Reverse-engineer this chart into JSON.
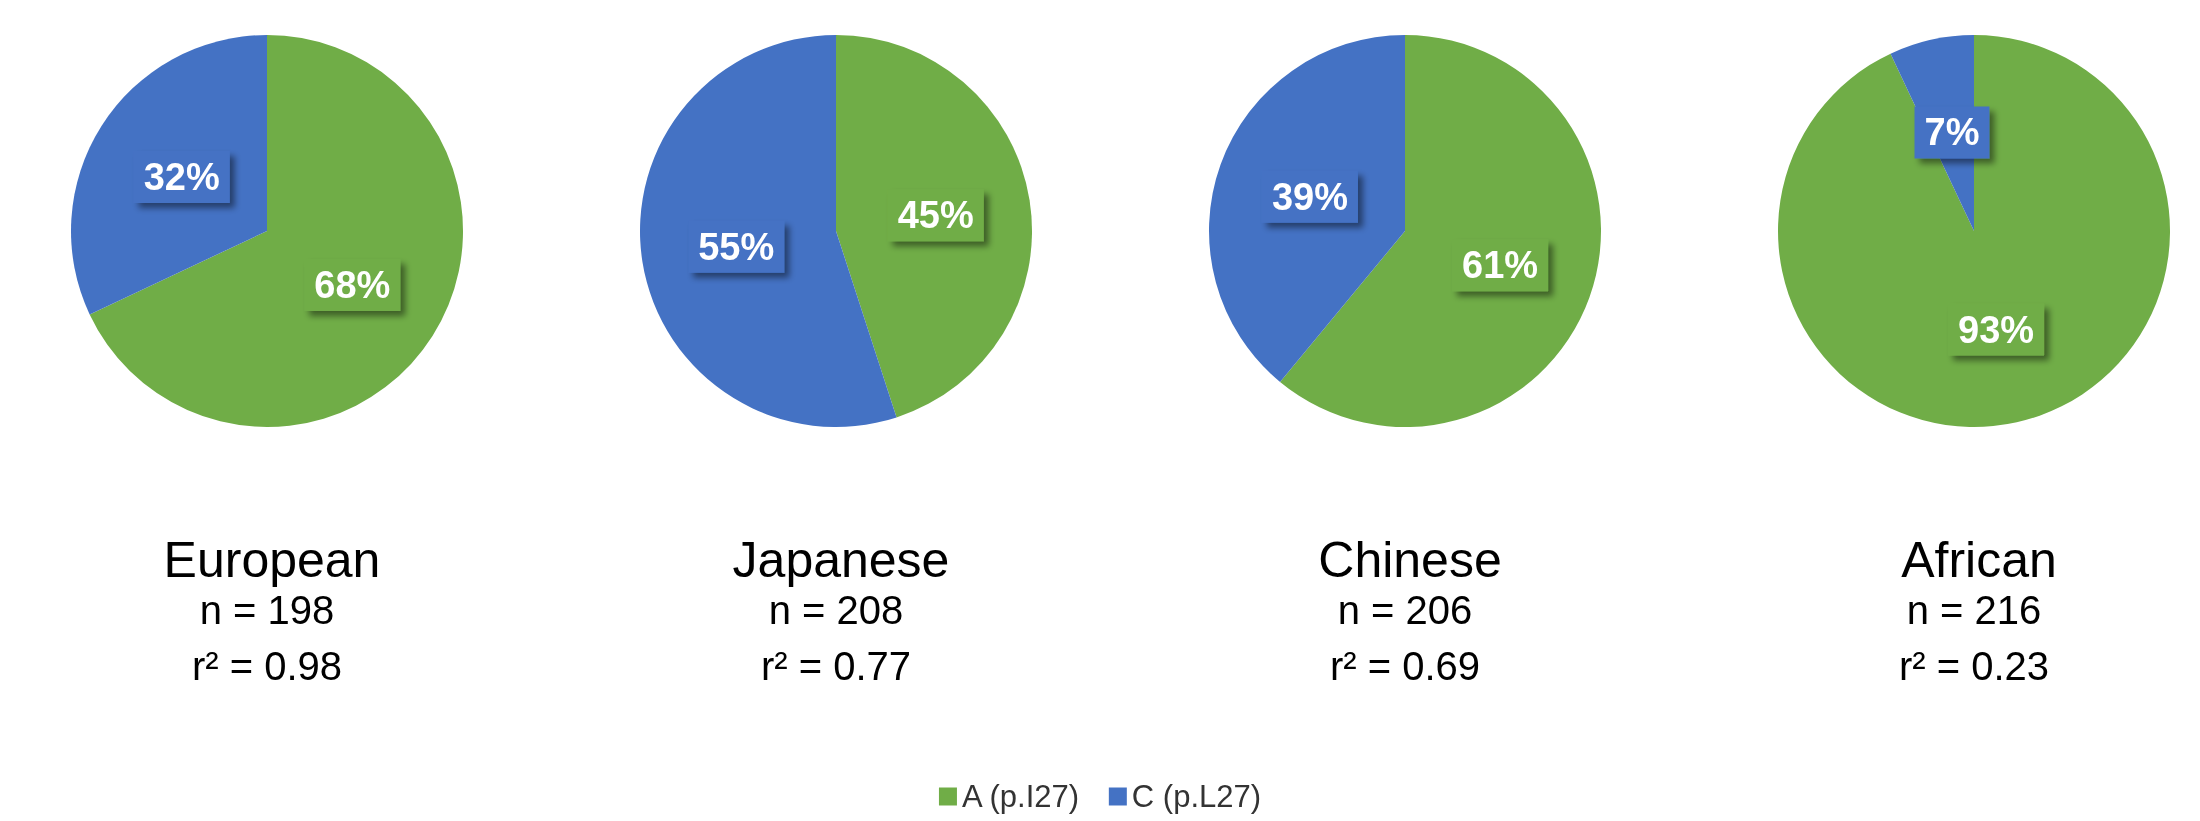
{
  "chart_data": [
    {
      "type": "pie",
      "title": "European",
      "annotations": [
        "n = 198",
        "r² = 0.98"
      ],
      "categories": [
        "A (p.I27)",
        "C (p.L27)"
      ],
      "values": [
        68,
        32
      ],
      "colors": [
        "#70ad47",
        "#4472c4"
      ],
      "value_labels": [
        "68%",
        "32%"
      ],
      "legend": "bottom"
    },
    {
      "type": "pie",
      "title": "Japanese",
      "annotations": [
        "n = 208",
        "r² = 0.77"
      ],
      "categories": [
        null,
        null
      ],
      "values": [
        45,
        55
      ],
      "colors": [
        "#70ad47",
        "#4472c4"
      ],
      "value_labels": [
        "45%",
        "55%"
      ]
    },
    {
      "type": "pie",
      "title": "Chinese",
      "annotations": [
        "n = 206",
        "r² = 0.69"
      ],
      "categories": [
        null,
        null
      ],
      "values": [
        61,
        39
      ],
      "colors": [
        "#70ad47",
        "#4472c4"
      ],
      "value_labels": [
        "61%",
        "39%"
      ]
    },
    {
      "type": "pie",
      "title": "African",
      "annotations": [
        "n = 216",
        "r² = 0.23"
      ],
      "categories": [
        null,
        null
      ],
      "values": [
        93,
        7
      ],
      "colors": [
        "#70ad47",
        "#4472c4"
      ],
      "value_labels": [
        "93%",
        "7%"
      ]
    }
  ]
}
